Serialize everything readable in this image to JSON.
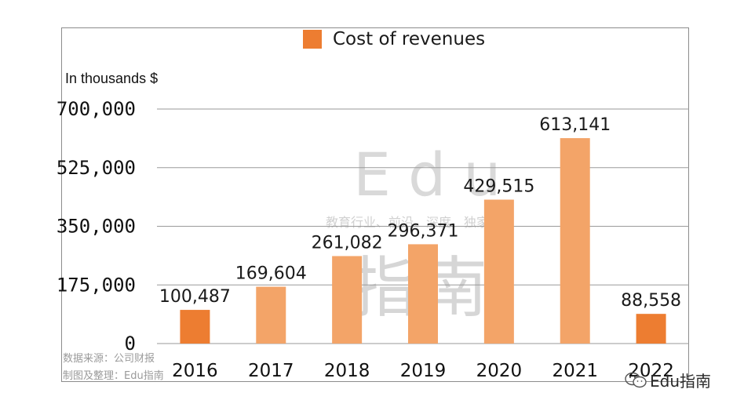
{
  "chart_data": {
    "type": "bar",
    "categories": [
      "2016",
      "2017",
      "2018",
      "2019",
      "2020",
      "2021",
      "2022"
    ],
    "series": [
      {
        "name": "Cost of revenues",
        "values": [
          100487,
          169604,
          261082,
          296371,
          429515,
          613141,
          88558
        ]
      }
    ],
    "data_labels": [
      "100,487",
      "169,604",
      "261,082",
      "296,371",
      "429,515",
      "613,141",
      "88,558"
    ],
    "ylabel": "In thousands $",
    "ylim": [
      0,
      700000
    ],
    "yticks": [
      0,
      175000,
      350000,
      525000,
      700000
    ],
    "ytick_labels": [
      "0",
      "175,000",
      "350,000",
      "525,000",
      "700,000"
    ],
    "grid": true,
    "legend_position": "top-center",
    "colors": {
      "highlight_bar": "#ed7d31",
      "regular_bar": "#f3a468",
      "grid": "#9a9a9a"
    },
    "highlighted_categories": [
      "2016",
      "2022"
    ]
  },
  "source_lines": [
    "数据来源：公司财报",
    "制图及整理：Edu指南"
  ],
  "watermark": {
    "word": "Edu",
    "slogan": "教育行业、前沿、深度、独家",
    "name": "指南"
  },
  "brand": {
    "icon": "wechat-icon",
    "text": "Edu指南"
  }
}
